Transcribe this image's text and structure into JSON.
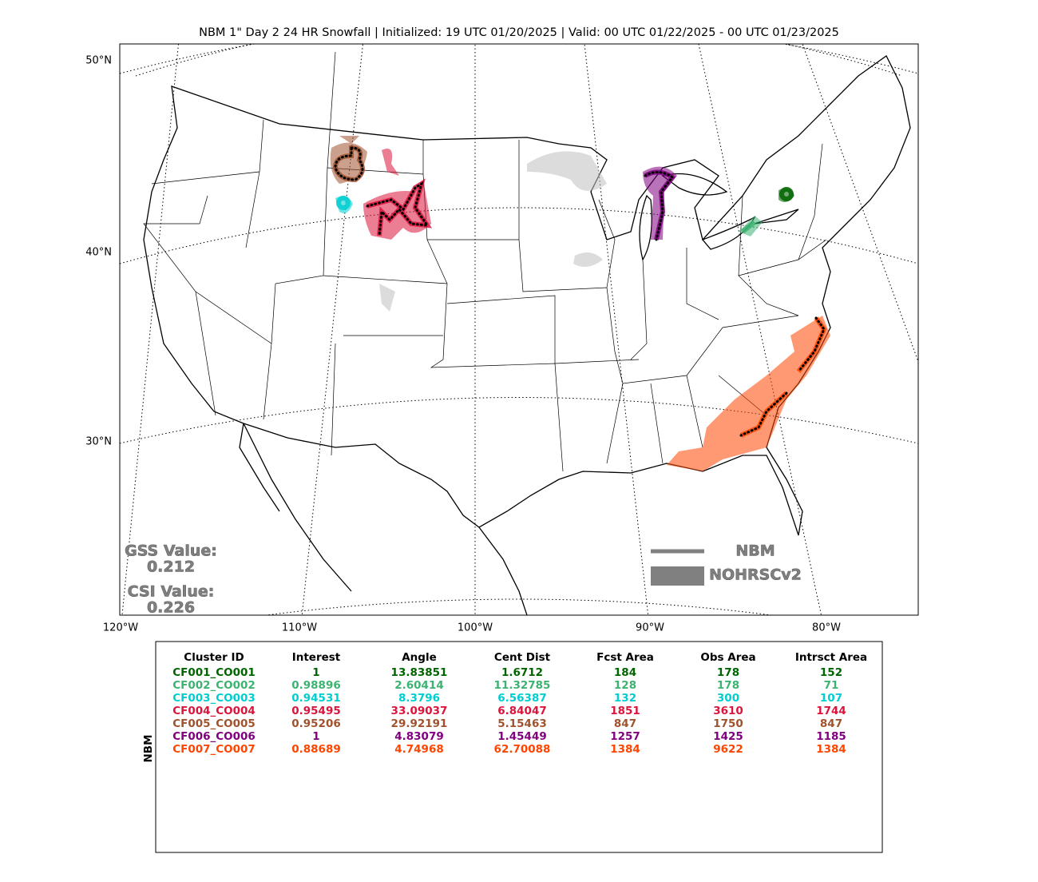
{
  "title": "NBM 1\" Day 2 24 HR Snowfall | Initialized: 19 UTC 01/20/2025 | Valid: 00 UTC 01/22/2025 - 00 UTC 01/23/2025",
  "lat_labels": [
    "50°N",
    "40°N",
    "30°N"
  ],
  "lon_labels": [
    "120°W",
    "110°W",
    "100°W",
    "90°W",
    "80°W"
  ],
  "scores": {
    "gss_label": "GSS Value:",
    "gss_value": "0.212",
    "csi_label": "CSI Value:",
    "csi_value": "0.226"
  },
  "legend": {
    "forecast": "NBM",
    "observed": "NOHRSCv2"
  },
  "side_label": "NBM",
  "table": {
    "columns": [
      "Cluster ID",
      "Interest",
      "Angle",
      "Cent Dist",
      "Fcst Area",
      "Obs Area",
      "Intrsct Area"
    ],
    "rows": [
      {
        "color": "#006400",
        "cells": [
          "CF001_CO001",
          "1",
          "13.83851",
          "1.6712",
          "184",
          "178",
          "152"
        ]
      },
      {
        "color": "#3cb371",
        "cells": [
          "CF002_CO002",
          "0.98896",
          "2.60414",
          "11.32785",
          "128",
          "178",
          "71"
        ]
      },
      {
        "color": "#00ced1",
        "cells": [
          "CF003_CO003",
          "0.94531",
          "8.3796",
          "6.56387",
          "132",
          "300",
          "107"
        ]
      },
      {
        "color": "#dc143c",
        "cells": [
          "CF004_CO004",
          "0.95495",
          "33.09037",
          "6.84047",
          "1851",
          "3610",
          "1744"
        ]
      },
      {
        "color": "#a0522d",
        "cells": [
          "CF005_CO005",
          "0.95206",
          "29.92191",
          "5.15463",
          "847",
          "1750",
          "847"
        ]
      },
      {
        "color": "#800080",
        "cells": [
          "CF006_CO006",
          "1",
          "4.83079",
          "1.45449",
          "1257",
          "1425",
          "1185"
        ]
      },
      {
        "color": "#ff4500",
        "cells": [
          "CF007_CO007",
          "0.88689",
          "4.74968",
          "62.70088",
          "1384",
          "9622",
          "1384"
        ]
      }
    ]
  }
}
